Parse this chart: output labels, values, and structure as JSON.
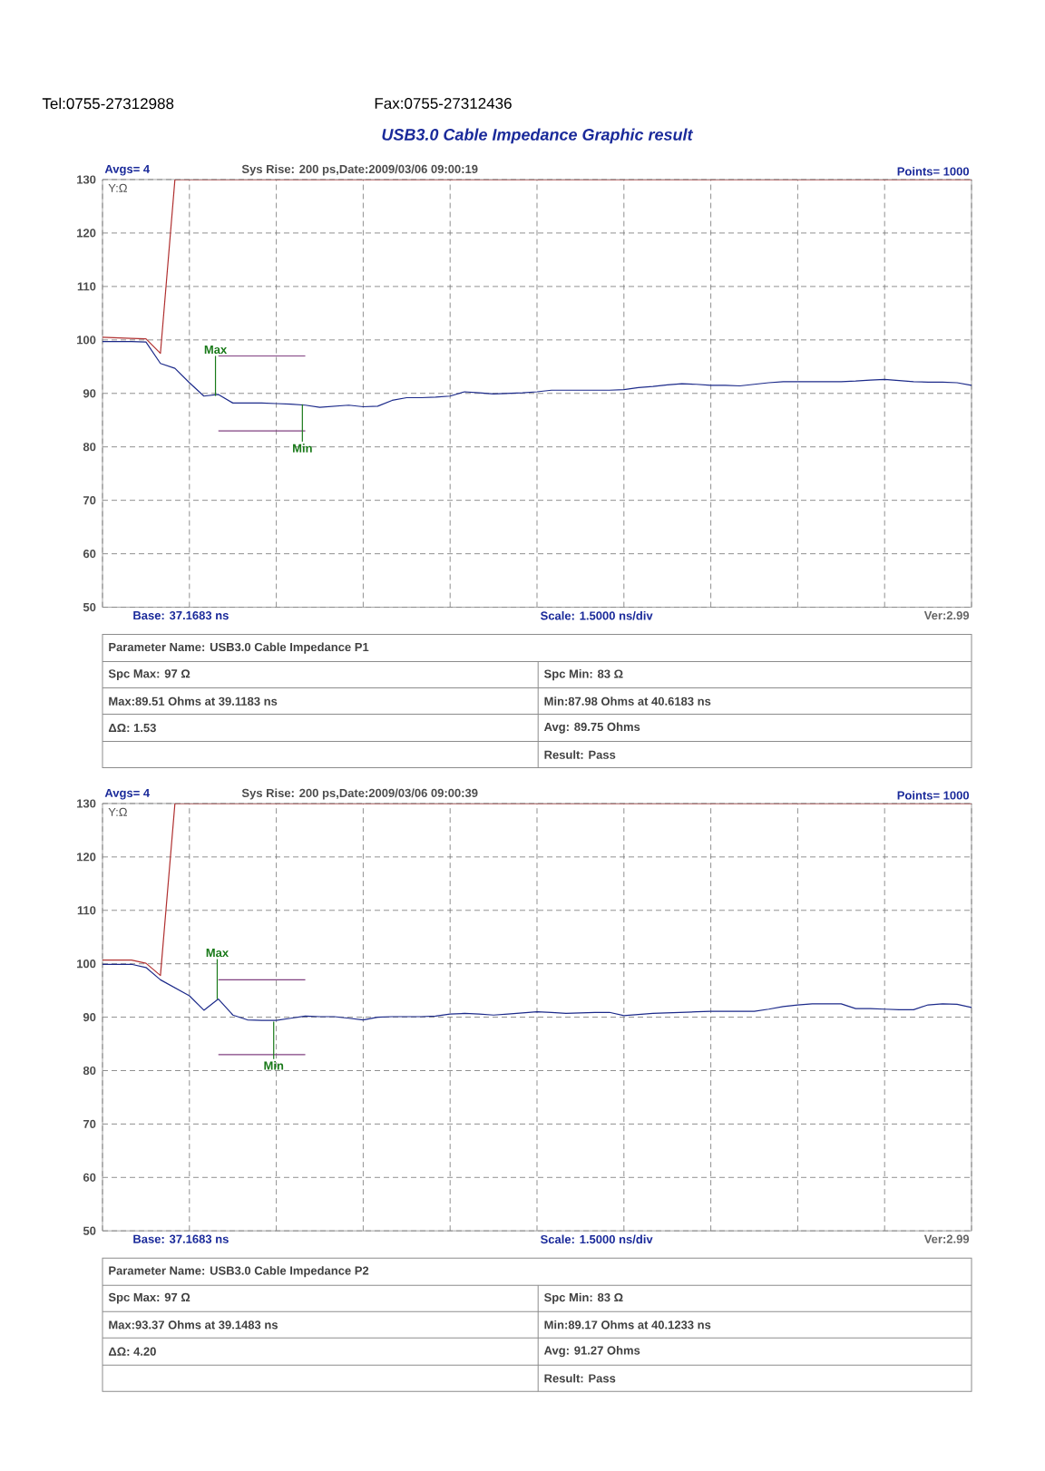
{
  "chart_data": [
    {
      "type": "line",
      "title": "USB3.0 Cable Impedance Graphic result",
      "ylabel": "Y:Ω",
      "categories": [
        null,
        null,
        null,
        null,
        null,
        null,
        null,
        null,
        null,
        null,
        null,
        null,
        null,
        null,
        null,
        null,
        null,
        null,
        null,
        null,
        null,
        null,
        null,
        null,
        null,
        null,
        null,
        null,
        null,
        null,
        null,
        null,
        null,
        null,
        null,
        null,
        null,
        null,
        null,
        null,
        null,
        null,
        null,
        null,
        null,
        null,
        null,
        null,
        null,
        null,
        null,
        null,
        null,
        null,
        null,
        null,
        null,
        null,
        null,
        null,
        null
      ],
      "ylim": [
        50,
        130
      ],
      "yticks": [
        50,
        60,
        70,
        80,
        90,
        100,
        110,
        120,
        130
      ],
      "grid": true,
      "tick_labels": "y",
      "marker": "none",
      "line_style": "solid",
      "series": [
        {
          "color": "#b03030",
          "values": [
            100.5,
            100.4,
            100.3,
            100.2,
            97.5,
            130,
            130,
            130,
            130,
            130,
            130,
            130,
            130,
            130,
            130,
            130,
            130,
            130,
            130,
            130,
            130,
            130,
            130,
            130,
            130,
            130,
            130,
            130,
            130,
            130,
            130,
            130,
            130,
            130,
            130,
            130,
            130,
            130,
            130,
            130,
            130,
            130,
            130,
            130,
            130,
            130,
            130,
            130,
            130,
            130,
            130,
            130,
            130,
            130,
            130,
            130,
            130,
            130,
            130,
            130,
            130
          ]
        },
        {
          "color": "#1c2a8a",
          "values": [
            99.7,
            99.7,
            99.7,
            99.6,
            95.6,
            94.7,
            92.0,
            89.5,
            89.8,
            88.2,
            88.2,
            88.2,
            88.1,
            88.0,
            87.8,
            87.4,
            87.6,
            87.8,
            87.5,
            87.6,
            88.7,
            89.2,
            89.2,
            89.3,
            89.5,
            90.3,
            90.1,
            89.9,
            90.0,
            90.1,
            90.3,
            90.6,
            90.6,
            90.6,
            90.6,
            90.6,
            90.7,
            91.1,
            91.3,
            91.6,
            91.8,
            91.7,
            91.5,
            91.5,
            91.4,
            91.7,
            92.0,
            92.2,
            92.2,
            92.2,
            92.2,
            92.2,
            92.3,
            92.5,
            92.6,
            92.4,
            92.2,
            92.1,
            92.1,
            92.0,
            91.5
          ]
        },
        {
          "color": "#804080",
          "values": [
            null,
            null,
            null,
            null,
            null,
            null,
            null,
            null,
            97,
            97,
            97,
            97,
            97,
            97,
            97,
            null,
            null,
            null,
            null,
            null,
            null,
            null,
            null,
            null,
            null,
            null,
            null,
            null,
            null,
            null,
            null,
            null,
            null,
            null,
            null,
            null,
            null,
            null,
            null,
            null,
            null,
            null,
            null,
            null,
            null,
            null,
            null,
            null,
            null,
            null,
            null,
            null,
            null,
            null,
            null,
            null,
            null,
            null,
            null,
            null,
            null
          ]
        },
        {
          "color": "#804080",
          "values": [
            null,
            null,
            null,
            null,
            null,
            null,
            null,
            null,
            83,
            83,
            83,
            83,
            83,
            83,
            83,
            null,
            null,
            null,
            null,
            null,
            null,
            null,
            null,
            null,
            null,
            null,
            null,
            null,
            null,
            null,
            null,
            null,
            null,
            null,
            null,
            null,
            null,
            null,
            null,
            null,
            null,
            null,
            null,
            null,
            null,
            null,
            null,
            null,
            null,
            null,
            null,
            null,
            null,
            null,
            null,
            null,
            null,
            null,
            null,
            null,
            null
          ]
        }
      ],
      "annotations": [
        "Avgs= 4",
        "Sys Rise: 200 ps,Date:2009/03/06 09:00:19",
        "Points= 1000",
        "Base: 37.1683 ns",
        "Scale: 1.5000 ns/div",
        "Ver:2.99",
        "Parameter Name: USB3.0 Cable Impedance P1",
        "Spc Max: 97 Ω",
        "Spc Min: 83 Ω",
        "Max:89.51 Ohms at 39.1183 ns",
        "Min:87.98 Ohms at 40.6183 ns",
        "ΔΩ: 1.53",
        "Avg: 89.75 Ohms",
        "Result: Pass",
        "Tel:0755-27312988",
        "Fax:0755-27312436",
        {
          "text": "Max",
          "y": 89.51
        },
        {
          "text": "Min",
          "y": 87.98
        }
      ]
    },
    {
      "type": "line",
      "ylabel": "Y:Ω",
      "categories": [
        null,
        null,
        null,
        null,
        null,
        null,
        null,
        null,
        null,
        null,
        null,
        null,
        null,
        null,
        null,
        null,
        null,
        null,
        null,
        null,
        null,
        null,
        null,
        null,
        null,
        null,
        null,
        null,
        null,
        null,
        null,
        null,
        null,
        null,
        null,
        null,
        null,
        null,
        null,
        null,
        null,
        null,
        null,
        null,
        null,
        null,
        null,
        null,
        null,
        null,
        null,
        null,
        null,
        null,
        null,
        null,
        null,
        null,
        null,
        null,
        null
      ],
      "ylim": [
        50,
        130
      ],
      "yticks": [
        50,
        60,
        70,
        80,
        90,
        100,
        110,
        120,
        130
      ],
      "grid": true,
      "tick_labels": "y",
      "marker": "none",
      "line_style": "solid",
      "series": [
        {
          "color": "#b03030",
          "values": [
            100.7,
            100.7,
            100.7,
            100.1,
            97.8,
            130,
            130,
            130,
            130,
            130,
            130,
            130,
            130,
            130,
            130,
            130,
            130,
            130,
            130,
            130,
            130,
            130,
            130,
            130,
            130,
            130,
            130,
            130,
            130,
            130,
            130,
            130,
            130,
            130,
            130,
            130,
            130,
            130,
            130,
            130,
            130,
            130,
            130,
            130,
            130,
            130,
            130,
            130,
            130,
            130,
            130,
            130,
            130,
            130,
            130,
            130,
            130,
            130,
            130,
            130,
            130
          ]
        },
        {
          "color": "#1c2a8a",
          "values": [
            99.9,
            99.9,
            99.9,
            99.3,
            97.0,
            95.5,
            94.0,
            91.3,
            93.4,
            90.4,
            89.5,
            89.4,
            89.4,
            89.8,
            90.2,
            90.1,
            90.1,
            89.8,
            89.5,
            90.0,
            90.1,
            90.1,
            90.1,
            90.2,
            90.6,
            90.7,
            90.6,
            90.4,
            90.6,
            90.8,
            91.0,
            90.9,
            90.7,
            90.8,
            90.9,
            90.9,
            90.3,
            90.5,
            90.7,
            90.8,
            90.9,
            91.0,
            91.1,
            91.1,
            91.1,
            91.1,
            91.5,
            92.0,
            92.3,
            92.5,
            92.5,
            92.5,
            91.6,
            91.6,
            91.5,
            91.4,
            91.4,
            92.3,
            92.5,
            92.4,
            91.8
          ]
        },
        {
          "color": "#804080",
          "values": [
            null,
            null,
            null,
            null,
            null,
            null,
            null,
            null,
            97,
            97,
            97,
            97,
            97,
            97,
            97,
            null,
            null,
            null,
            null,
            null,
            null,
            null,
            null,
            null,
            null,
            null,
            null,
            null,
            null,
            null,
            null,
            null,
            null,
            null,
            null,
            null,
            null,
            null,
            null,
            null,
            null,
            null,
            null,
            null,
            null,
            null,
            null,
            null,
            null,
            null,
            null,
            null,
            null,
            null,
            null,
            null,
            null,
            null,
            null,
            null,
            null
          ]
        },
        {
          "color": "#804080",
          "values": [
            null,
            null,
            null,
            null,
            null,
            null,
            null,
            null,
            83,
            83,
            83,
            83,
            83,
            83,
            83,
            null,
            null,
            null,
            null,
            null,
            null,
            null,
            null,
            null,
            null,
            null,
            null,
            null,
            null,
            null,
            null,
            null,
            null,
            null,
            null,
            null,
            null,
            null,
            null,
            null,
            null,
            null,
            null,
            null,
            null,
            null,
            null,
            null,
            null,
            null,
            null,
            null,
            null,
            null,
            null,
            null,
            null,
            null,
            null,
            null,
            null
          ]
        }
      ],
      "annotations": [
        "Avgs= 4",
        "Sys Rise: 200 ps,Date:2009/03/06 09:00:39",
        "Points= 1000",
        "Base: 37.1683 ns",
        "Scale: 1.5000 ns/div",
        "Ver:2.99",
        "Parameter Name: USB3.0 Cable Impedance P2",
        "Spc Max: 97 Ω",
        "Spc Min: 83 Ω",
        "Max:93.37 Ohms at 39.1483 ns",
        "Min:89.17 Ohms at 40.1233 ns",
        "ΔΩ: 4.20",
        "Avg: 91.27 Ohms",
        "Result: Pass",
        {
          "text": "Max",
          "y": 93.37
        },
        {
          "text": "Min",
          "y": 89.17
        }
      ]
    }
  ]
}
